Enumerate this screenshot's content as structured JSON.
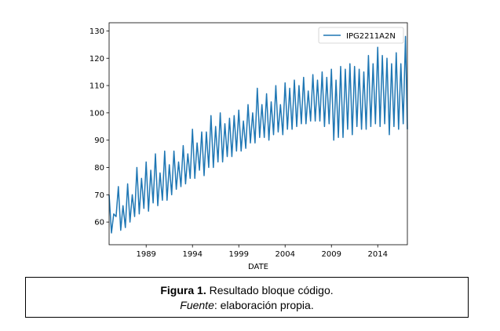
{
  "chart_data": {
    "type": "line",
    "title": "",
    "xlabel": "DATE",
    "ylabel": "",
    "xlim": [
      1985.0,
      2017.2
    ],
    "ylim": [
      51.7,
      133
    ],
    "xticks": [
      1989,
      1994,
      1999,
      2004,
      2009,
      2014
    ],
    "yticks": [
      60,
      70,
      80,
      90,
      100,
      110,
      120,
      130
    ],
    "legend": "top-right",
    "grid": false,
    "series": [
      {
        "name": "IPG2211A2N",
        "color": "#1f77b4",
        "x": [
          1985.0,
          1985.25,
          1985.5,
          1985.75,
          1986.0,
          1986.25,
          1986.5,
          1986.75,
          1987.0,
          1987.25,
          1987.5,
          1987.75,
          1988.0,
          1988.25,
          1988.5,
          1988.75,
          1989.0,
          1989.25,
          1989.5,
          1989.75,
          1990.0,
          1990.25,
          1990.5,
          1990.75,
          1991.0,
          1991.25,
          1991.5,
          1991.75,
          1992.0,
          1992.25,
          1992.5,
          1992.75,
          1993.0,
          1993.25,
          1993.5,
          1993.75,
          1994.0,
          1994.25,
          1994.5,
          1994.75,
          1995.0,
          1995.25,
          1995.5,
          1995.75,
          1996.0,
          1996.25,
          1996.5,
          1996.75,
          1997.0,
          1997.25,
          1997.5,
          1997.75,
          1998.0,
          1998.25,
          1998.5,
          1998.75,
          1999.0,
          1999.25,
          1999.5,
          1999.75,
          2000.0,
          2000.25,
          2000.5,
          2000.75,
          2001.0,
          2001.25,
          2001.5,
          2001.75,
          2002.0,
          2002.25,
          2002.5,
          2002.75,
          2003.0,
          2003.25,
          2003.5,
          2003.75,
          2004.0,
          2004.25,
          2004.5,
          2004.75,
          2005.0,
          2005.25,
          2005.5,
          2005.75,
          2006.0,
          2006.25,
          2006.5,
          2006.75,
          2007.0,
          2007.25,
          2007.5,
          2007.75,
          2008.0,
          2008.25,
          2008.5,
          2008.75,
          2009.0,
          2009.25,
          2009.5,
          2009.75,
          2010.0,
          2010.25,
          2010.5,
          2010.75,
          2011.0,
          2011.25,
          2011.5,
          2011.75,
          2012.0,
          2012.25,
          2012.5,
          2012.75,
          2013.0,
          2013.25,
          2013.5,
          2013.75,
          2014.0,
          2014.25,
          2014.5,
          2014.75,
          2015.0,
          2015.25,
          2015.5,
          2015.75,
          2016.0,
          2016.25,
          2016.5,
          2016.75,
          2017.0,
          2017.2
        ],
        "values": [
          70,
          56,
          63,
          62,
          73,
          57,
          66,
          58,
          74,
          60,
          70,
          62,
          80,
          63,
          76,
          65,
          82,
          64,
          79,
          67,
          85,
          66,
          78,
          68,
          86,
          68,
          81,
          70,
          86,
          72,
          82,
          73,
          88,
          74,
          85,
          76,
          94,
          76,
          89,
          79,
          93,
          77,
          93,
          80,
          99,
          80,
          95,
          82,
          100,
          82,
          96,
          84,
          98,
          84,
          99,
          86,
          101,
          86,
          97,
          87,
          103,
          89,
          100,
          89,
          109,
          91,
          103,
          91,
          107,
          90,
          104,
          92,
          110,
          93,
          103,
          92,
          111,
          94,
          109,
          94,
          112,
          95,
          110,
          96,
          113,
          96,
          108,
          97,
          114,
          97,
          112,
          97,
          115,
          95,
          113,
          96,
          116,
          90,
          112,
          91,
          117,
          91,
          116,
          94,
          118,
          92,
          117,
          95,
          116,
          94,
          115,
          94,
          121,
          95,
          118,
          96,
          124,
          95,
          121,
          96,
          120,
          92,
          118,
          95,
          122,
          94,
          118,
          96,
          128,
          94
        ]
      }
    ]
  },
  "caption": {
    "label": "Figura 1.",
    "text": " Resultado bloque código.",
    "source_label": "Fuente",
    "source_text": ": elaboración propia."
  }
}
